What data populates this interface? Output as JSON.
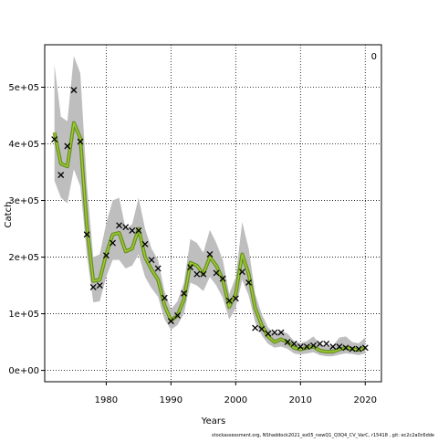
{
  "chart_data": {
    "type": "line",
    "title": "",
    "xlabel": "Years",
    "ylabel": "Catch",
    "xlim": [
      1970.5,
      2022.5
    ],
    "ylim": [
      -20000,
      575000
    ],
    "x_ticks": [
      1980,
      1990,
      2000,
      2010,
      2020
    ],
    "y_ticks": [
      0,
      100000,
      200000,
      300000,
      400000,
      500000
    ],
    "y_tick_labels": [
      "0e+00",
      "1e+05",
      "2e+05",
      "3e+05",
      "4e+05",
      "5e+05"
    ],
    "grid": true,
    "corner_label": "0",
    "footer": "stockassessment.org, NShaddock2021_ex05_newQ1_Q3Q4_CV_VarC, r15418 , git: ec2c2a0c6dde",
    "colors": {
      "band": "#bebebe",
      "line_outer": "#6b8e23",
      "line_inner": "#9acd32",
      "observed": "#000000"
    },
    "years": [
      1972,
      1973,
      1974,
      1975,
      1976,
      1977,
      1978,
      1979,
      1980,
      1981,
      1982,
      1983,
      1984,
      1985,
      1986,
      1987,
      1988,
      1989,
      1990,
      1991,
      1992,
      1993,
      1994,
      1995,
      1996,
      1997,
      1998,
      1999,
      2000,
      2001,
      2002,
      2003,
      2004,
      2005,
      2006,
      2007,
      2008,
      2009,
      2010,
      2011,
      2012,
      2013,
      2014,
      2015,
      2016,
      2017,
      2018,
      2019,
      2020
    ],
    "series": [
      {
        "name": "",
        "type": "line",
        "values": [
          420000,
          365000,
          360000,
          437000,
          410000,
          255000,
          158000,
          160000,
          205000,
          240000,
          243000,
          210000,
          215000,
          250000,
          200000,
          178000,
          160000,
          115000,
          88000,
          97000,
          125000,
          190000,
          185000,
          170000,
          200000,
          185000,
          160000,
          112000,
          135000,
          205000,
          170000,
          110000,
          80000,
          60000,
          50000,
          55000,
          50000,
          40000,
          37000,
          40000,
          42000,
          35000,
          33000,
          33000,
          37000,
          40000,
          38000,
          36000,
          40000
        ],
        "lower": [
          335000,
          305000,
          295000,
          355000,
          325000,
          205000,
          120000,
          122000,
          165000,
          195000,
          195000,
          180000,
          185000,
          205000,
          165000,
          145000,
          130000,
          90000,
          72000,
          80000,
          100000,
          155000,
          150000,
          140000,
          165000,
          150000,
          128000,
          90000,
          110000,
          160000,
          132000,
          85000,
          62000,
          47000,
          40000,
          42000,
          38000,
          30000,
          28000,
          30000,
          32000,
          27000,
          25000,
          25000,
          28000,
          30000,
          29000,
          27000,
          30000
        ],
        "upper": [
          540000,
          448000,
          440000,
          555000,
          525000,
          330000,
          200000,
          205000,
          260000,
          300000,
          305000,
          250000,
          258000,
          305000,
          250000,
          215000,
          195000,
          140000,
          108000,
          122000,
          155000,
          232000,
          225000,
          208000,
          248000,
          225000,
          195000,
          135000,
          165000,
          262000,
          215000,
          135000,
          100000,
          76000,
          64000,
          70000,
          65000,
          52000,
          48000,
          52000,
          60000,
          47000,
          43000,
          43000,
          58000,
          60000,
          50000,
          48000,
          58000
        ]
      },
      {
        "name": "",
        "type": "scatter",
        "x": [
          1972,
          1973,
          1974,
          1975,
          1976,
          1977,
          1978,
          1979,
          1980,
          1981,
          1982,
          1983,
          1984,
          1985,
          1986,
          1987,
          1988,
          1989,
          1990,
          1991,
          1992,
          1993,
          1994,
          1995,
          1996,
          1997,
          1998,
          1999,
          2000,
          2001,
          2002,
          2003,
          2004,
          2005,
          2006,
          2007,
          2008,
          2009,
          2010,
          2011,
          2012,
          2013,
          2014,
          2015,
          2016,
          2017,
          2018,
          2019,
          2020
        ],
        "values": [
          408000,
          345000,
          396000,
          495000,
          404000,
          240000,
          147000,
          150000,
          203000,
          225000,
          256000,
          253000,
          247000,
          247000,
          223000,
          195000,
          180000,
          128000,
          87000,
          97000,
          136000,
          182000,
          170000,
          170000,
          205000,
          172000,
          162000,
          123000,
          127000,
          174000,
          155000,
          75000,
          73000,
          65000,
          67000,
          67000,
          50000,
          47000,
          42000,
          42000,
          44000,
          47000,
          47000,
          42000,
          42000,
          40000,
          38000,
          38000,
          40000
        ]
      }
    ]
  }
}
